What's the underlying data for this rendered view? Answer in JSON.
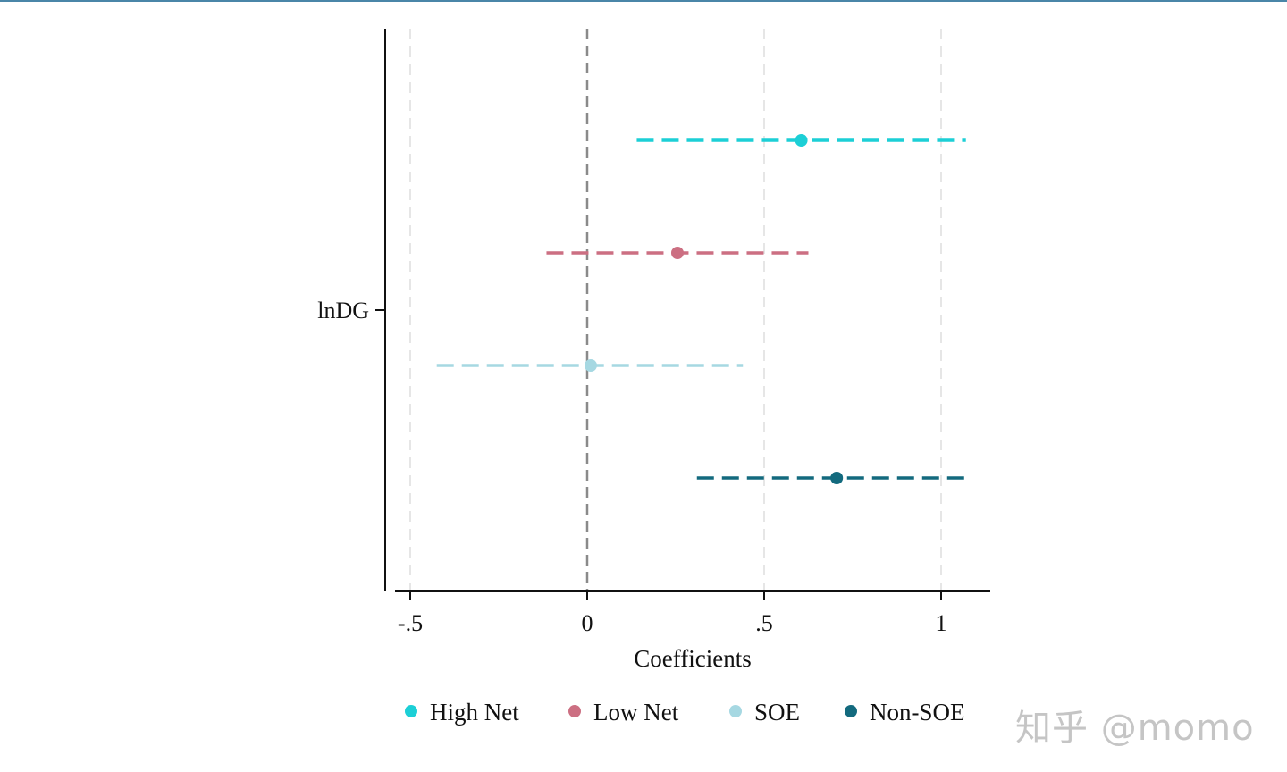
{
  "chart_data": {
    "type": "coefficient-plot",
    "ylabel_tick": "lnDG",
    "xlabel": "Coefficients",
    "xlim": [
      -0.55,
      1.14
    ],
    "xticks": [
      {
        "value": -0.5,
        "label": "-.5"
      },
      {
        "value": 0,
        "label": "0"
      },
      {
        "value": 0.5,
        "label": ".5"
      },
      {
        "value": 1,
        "label": "1"
      }
    ],
    "reference_line": 0,
    "grid": true,
    "series": [
      {
        "name": "High Net",
        "estimate": 0.605,
        "ci_low": 0.14,
        "ci_high": 1.07,
        "color": "#1ccfd6"
      },
      {
        "name": "Low Net",
        "estimate": 0.255,
        "ci_low": -0.115,
        "ci_high": 0.625,
        "color": "#cc6f82"
      },
      {
        "name": "SOE",
        "estimate": 0.01,
        "ci_low": -0.425,
        "ci_high": 0.44,
        "color": "#a6d8e2"
      },
      {
        "name": "Non-SOE",
        "estimate": 0.705,
        "ci_low": 0.31,
        "ci_high": 1.075,
        "color": "#136a7e"
      }
    ],
    "legend_position": "bottom"
  },
  "watermark": "知乎 @momo"
}
